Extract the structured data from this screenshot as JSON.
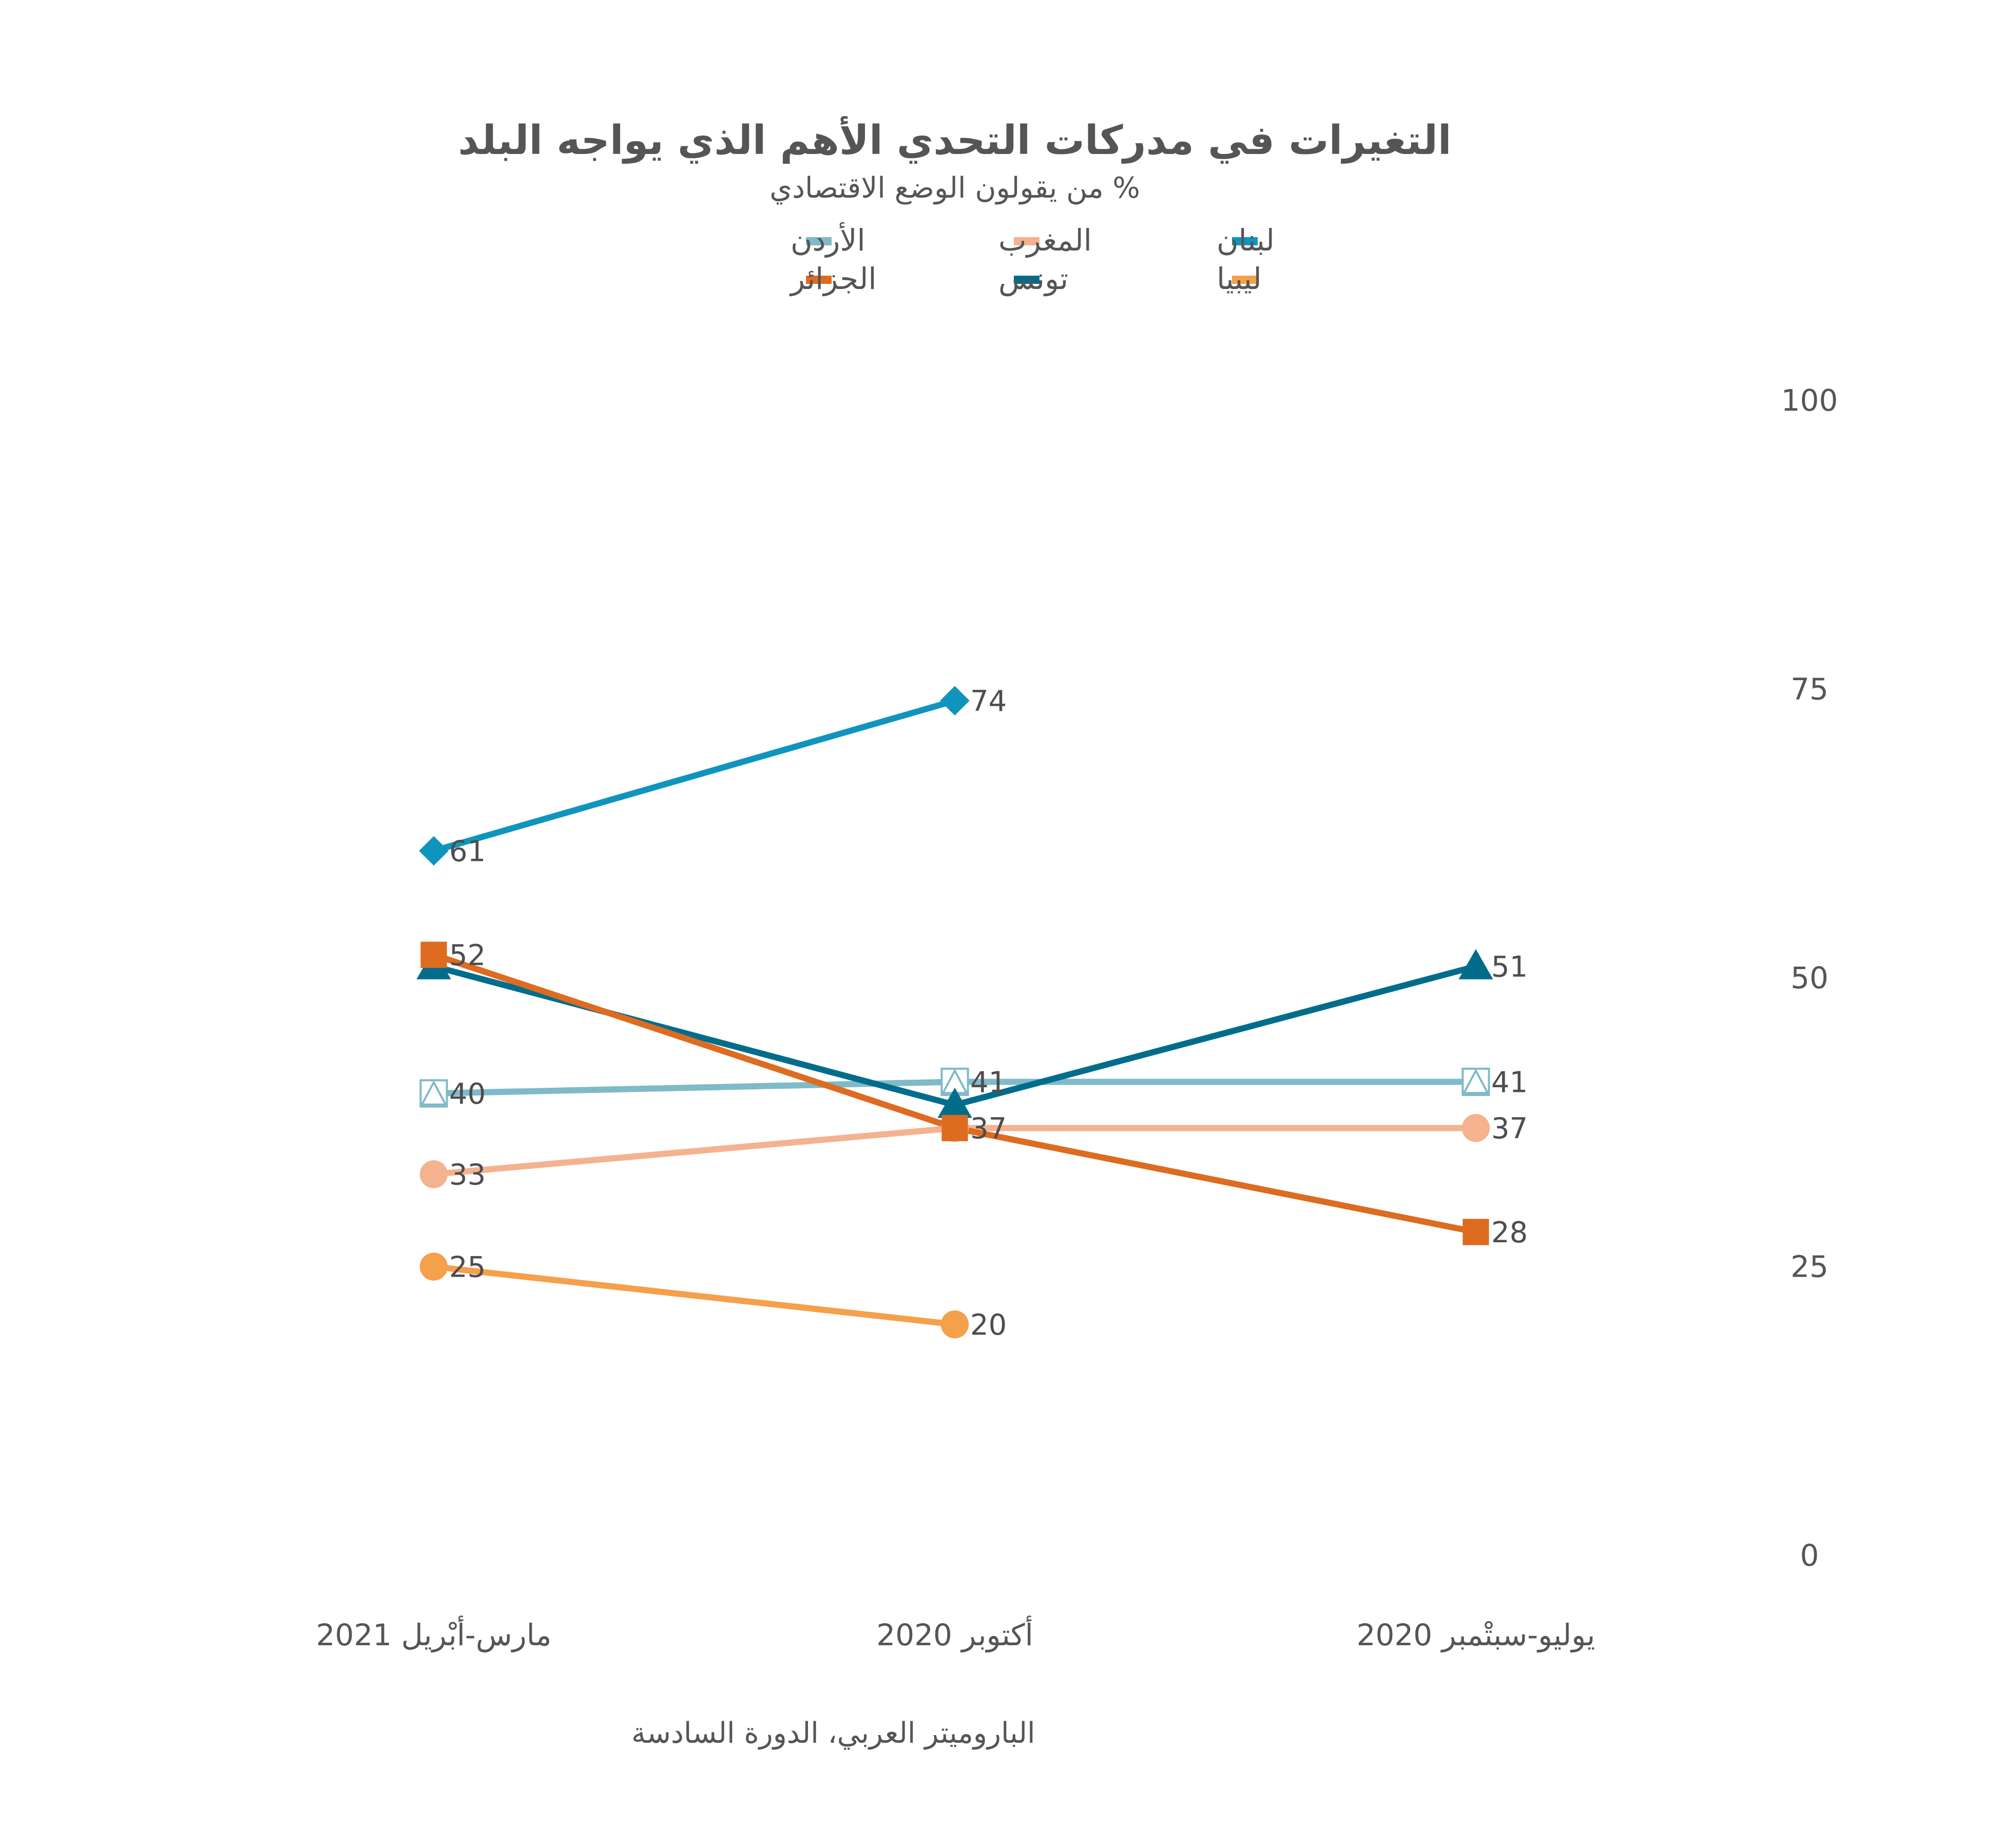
{
  "chart_data": {
    "type": "line",
    "title": "التغيرات في مدركات التحدي الأهم الذي يواجه البلد",
    "subtitle": "% من يقولون الوضع الاقتصادي",
    "caption": "الباروميتر العربي، الدورة السادسة",
    "categories": [
      "مارس-أبْريل 2021",
      "أكتوبر 2020",
      "يوليو-سبتْمبر 2020"
    ],
    "yticks": [
      "100",
      "75",
      "50",
      "25",
      "0"
    ],
    "ylim": [
      0,
      100
    ],
    "grid": false,
    "legend_position": "top",
    "series": [
      {
        "name": "لبنان",
        "values": [
          61,
          74,
          null
        ],
        "labels": [
          "61",
          "74",
          ""
        ],
        "color": "#0f95bd",
        "marker": "diamond"
      },
      {
        "name": "المغرب",
        "values": [
          33,
          37,
          37
        ],
        "labels": [
          "33",
          "37",
          "37"
        ],
        "color": "#f4b28f",
        "marker": "circle"
      },
      {
        "name": "الأردن",
        "values": [
          40,
          41,
          41
        ],
        "labels": [
          "40",
          "41",
          "41"
        ],
        "color": "#7fbac8",
        "marker": "triangle-open"
      },
      {
        "name": "ليبيا",
        "values": [
          25,
          20,
          null
        ],
        "labels": [
          "25",
          "20",
          ""
        ],
        "color": "#f5a04a",
        "marker": "circle"
      },
      {
        "name": "تونس",
        "values": [
          51,
          39,
          51
        ],
        "labels": [
          "",
          "",
          "51"
        ],
        "color": "#016d8b",
        "marker": "triangle"
      },
      {
        "name": "الجزائر",
        "values": [
          52,
          37,
          28
        ],
        "labels": [
          "52",
          "",
          "28"
        ],
        "color": "#dd6b20",
        "marker": "square"
      }
    ]
  }
}
